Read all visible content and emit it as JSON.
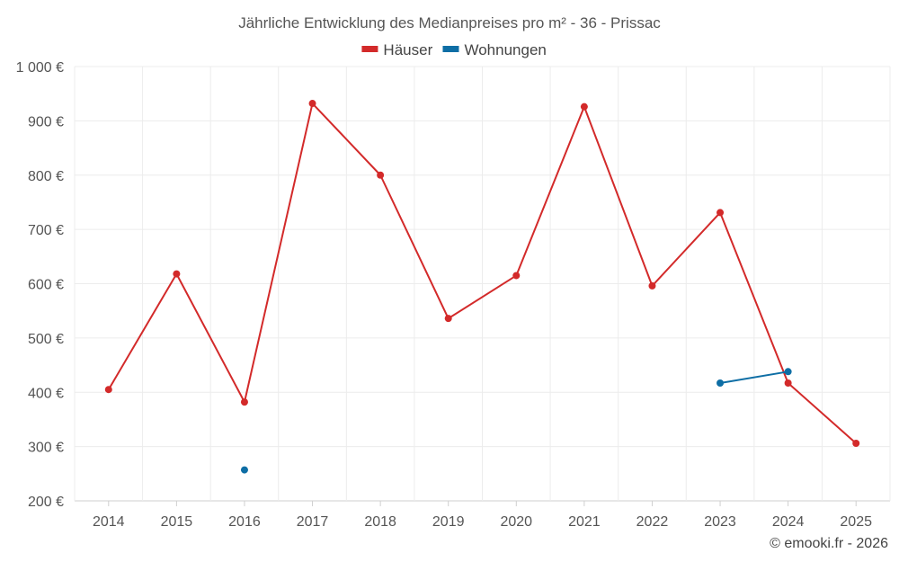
{
  "chart_data": {
    "type": "line",
    "title": "Jährliche Entwicklung des Medianpreises pro m² - 36 - Prissac",
    "categories": [
      "2014",
      "2015",
      "2016",
      "2017",
      "2018",
      "2019",
      "2020",
      "2021",
      "2022",
      "2023",
      "2024",
      "2025"
    ],
    "ylim": [
      200,
      1000
    ],
    "yticks": [
      200,
      300,
      400,
      500,
      600,
      700,
      800,
      900,
      1000
    ],
    "ytick_labels": [
      "200 €",
      "300 €",
      "400 €",
      "500 €",
      "600 €",
      "700 €",
      "800 €",
      "900 €",
      "1 000 €"
    ],
    "xlabel": "",
    "ylabel": "",
    "grid": true,
    "legend_position": "top-center",
    "series": [
      {
        "name": "Häuser",
        "color": "#d32a2a",
        "values": [
          405,
          618,
          382,
          932,
          800,
          536,
          615,
          926,
          596,
          731,
          417,
          306
        ]
      },
      {
        "name": "Wohnungen",
        "color": "#0e6ea5",
        "values": [
          null,
          null,
          257,
          null,
          null,
          null,
          null,
          null,
          null,
          417,
          438,
          null
        ]
      }
    ]
  },
  "footer": {
    "credit": "© emooki.fr - 2026"
  }
}
